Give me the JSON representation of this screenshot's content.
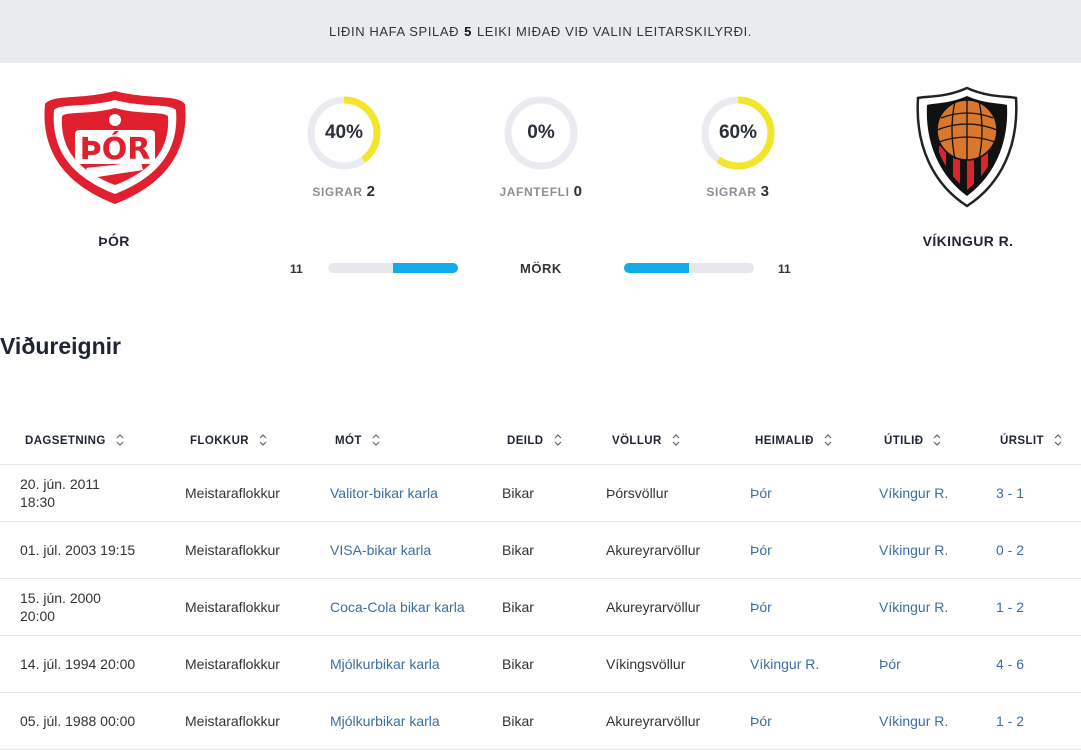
{
  "banner": {
    "prefix": "LIÐIN HAFA SPILAÐ",
    "count": "5",
    "suffix": "LEIKI MIÐAÐ VIÐ VALIN LEITARSKILYRÐI."
  },
  "home_team": {
    "name": "ÞÓR",
    "crest_icon": "thor-crest-icon",
    "crest_text": "ÞÓR"
  },
  "away_team": {
    "name": "VÍKINGUR R.",
    "crest_icon": "vikingur-crest-icon"
  },
  "stats": {
    "home_wins": {
      "percent": "40%",
      "fraction": 0.4,
      "label": "SIGRAR",
      "count": "2"
    },
    "draws": {
      "percent": "0%",
      "fraction": 0.0,
      "label": "JAFNTEFLI",
      "count": "0"
    },
    "away_wins": {
      "percent": "60%",
      "fraction": 0.6,
      "label": "SIGRAR",
      "count": "3"
    }
  },
  "goals": {
    "label": "MÖRK",
    "home": "11",
    "away": "11",
    "home_fraction": 0.5,
    "away_fraction": 0.5
  },
  "section_title": "Viðureignir",
  "table": {
    "headers": [
      "DAGSETNING",
      "FLOKKUR",
      "MÓT",
      "DEILD",
      "VÖLLUR",
      "HEIMALIÐ",
      "ÚTILIÐ",
      "ÚRSLIT"
    ],
    "rows": [
      {
        "date": "20. jún. 2011 18:30",
        "flokkur": "Meistaraflokkur",
        "mot": "Valitor-bikar karla",
        "deild": "Bikar",
        "vollur": "Þórsvöllur",
        "heima": "Þór",
        "uti": "Víkingur R.",
        "urslit": "3 - 1"
      },
      {
        "date": "01. júl. 2003 19:15",
        "flokkur": "Meistaraflokkur",
        "mot": "VISA-bikar karla",
        "deild": "Bikar",
        "vollur": "Akureyrarvöllur",
        "heima": "Þór",
        "uti": "Víkingur R.",
        "urslit": "0 - 2"
      },
      {
        "date": "15. jún. 2000 20:00",
        "flokkur": "Meistaraflokkur",
        "mot": "Coca-Cola bikar karla",
        "deild": "Bikar",
        "vollur": "Akureyrarvöllur",
        "heima": "Þór",
        "uti": "Víkingur R.",
        "urslit": "1 - 2"
      },
      {
        "date": "14. júl. 1994 20:00",
        "flokkur": "Meistaraflokkur",
        "mot": "Mjólkurbikar karla",
        "deild": "Bikar",
        "vollur": "Víkingsvöllur",
        "heima": "Víkingur R.",
        "uti": "Þór",
        "urslit": "4 - 6"
      },
      {
        "date": "05. júl. 1988 00:00",
        "flokkur": "Meistaraflokkur",
        "mot": "Mjólkurbikar karla",
        "deild": "Bikar",
        "vollur": "Akureyrarvöllur",
        "heima": "Þór",
        "uti": "Víkingur R.",
        "urslit": "1 - 2"
      }
    ]
  },
  "colors": {
    "accent_ring": "#f2e52a",
    "ring_track": "#e9ebf1",
    "goal_bar": "#13aaea",
    "link": "#3d6da3",
    "home_red": "#e0202e"
  }
}
